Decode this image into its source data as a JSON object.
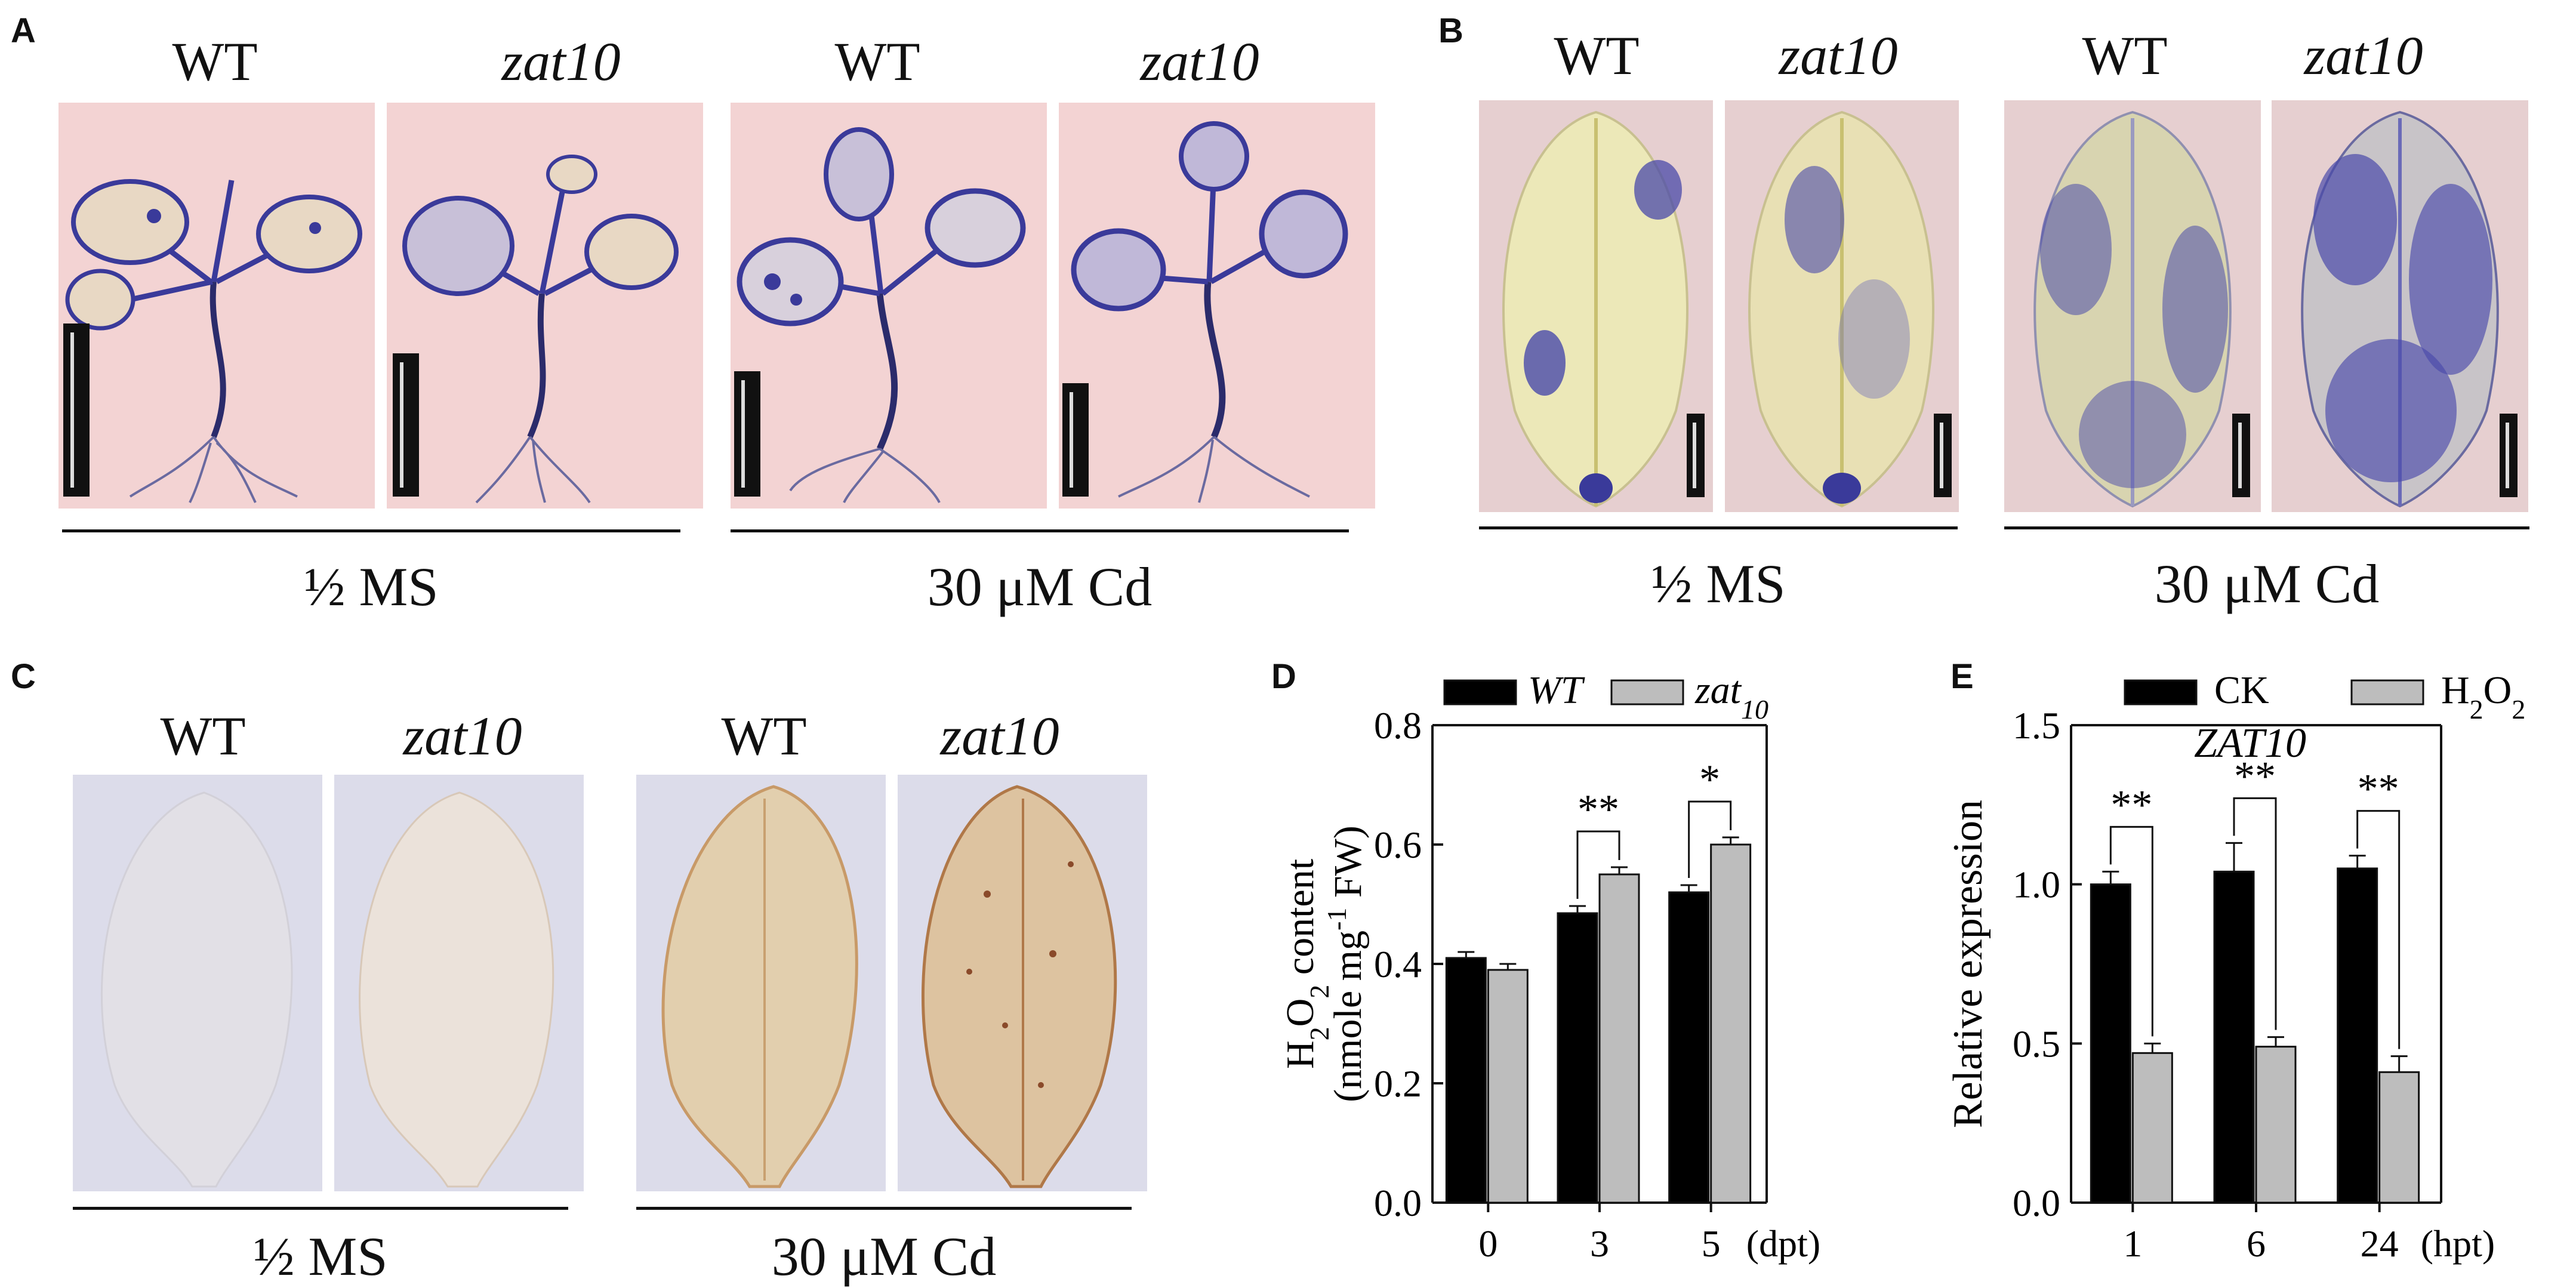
{
  "panels": {
    "A": {
      "letter": "A",
      "groups": [
        {
          "labels": [
            "WT",
            "zat10"
          ],
          "condition": "½ MS"
        },
        {
          "labels": [
            "WT",
            "zat10"
          ],
          "condition": "30 μM Cd"
        }
      ]
    },
    "B": {
      "letter": "B",
      "groups": [
        {
          "labels": [
            "WT",
            "zat10"
          ],
          "condition": "½ MS"
        },
        {
          "labels": [
            "WT",
            "zat10"
          ],
          "condition": "30 μM Cd"
        }
      ]
    },
    "C": {
      "letter": "C",
      "groups": [
        {
          "labels": [
            "WT",
            "zat10"
          ],
          "condition": "½ MS"
        },
        {
          "labels": [
            "WT",
            "zat10"
          ],
          "condition": "30 μM Cd"
        }
      ]
    }
  },
  "colors": {
    "nbt_background": "#f3d3d3",
    "nbt_stain": "#3a3a9a",
    "dab_background": "#dcdcea",
    "dab_stain": "#a86a3a",
    "bar_dark": "#000000",
    "bar_light": "#bdbdbd"
  },
  "chart_data": [
    {
      "panel": "D",
      "type": "bar",
      "categories": [
        "0",
        "3",
        "5"
      ],
      "x_unit": "(dpt)",
      "series": [
        {
          "name": "WT",
          "values": [
            0.41,
            0.485,
            0.52
          ],
          "errors": [
            0.01,
            0.012,
            0.012
          ]
        },
        {
          "name": "zat10",
          "values": [
            0.39,
            0.55,
            0.6
          ],
          "errors": [
            0.01,
            0.012,
            0.012
          ]
        }
      ],
      "ylabel_line1": "H2O2 content",
      "ylabel_line2": "(nmole mg-1 FW)",
      "ylim": [
        0.0,
        0.8
      ],
      "yticks": [
        "0.0",
        "0.2",
        "0.4",
        "0.6",
        "0.8"
      ],
      "significance": [
        {
          "category": "3",
          "label": "**"
        },
        {
          "category": "5",
          "label": "*"
        }
      ],
      "legend_position": "top"
    },
    {
      "panel": "E",
      "type": "bar",
      "title": "ZAT10",
      "categories": [
        "1",
        "6",
        "24"
      ],
      "x_unit": "(hpt)",
      "series": [
        {
          "name": "CK",
          "values": [
            1.0,
            1.04,
            1.05
          ],
          "errors": [
            0.04,
            0.09,
            0.04
          ]
        },
        {
          "name": "H2O2",
          "values": [
            0.47,
            0.49,
            0.41
          ],
          "errors": [
            0.03,
            0.03,
            0.05
          ]
        }
      ],
      "ylabel": "Relative expression",
      "ylim": [
        0.0,
        1.5
      ],
      "yticks": [
        "0.0",
        "0.5",
        "1.0",
        "1.5"
      ],
      "significance": [
        {
          "category": "1",
          "label": "**"
        },
        {
          "category": "6",
          "label": "**"
        },
        {
          "category": "24",
          "label": "**"
        }
      ],
      "legend_position": "top"
    }
  ]
}
